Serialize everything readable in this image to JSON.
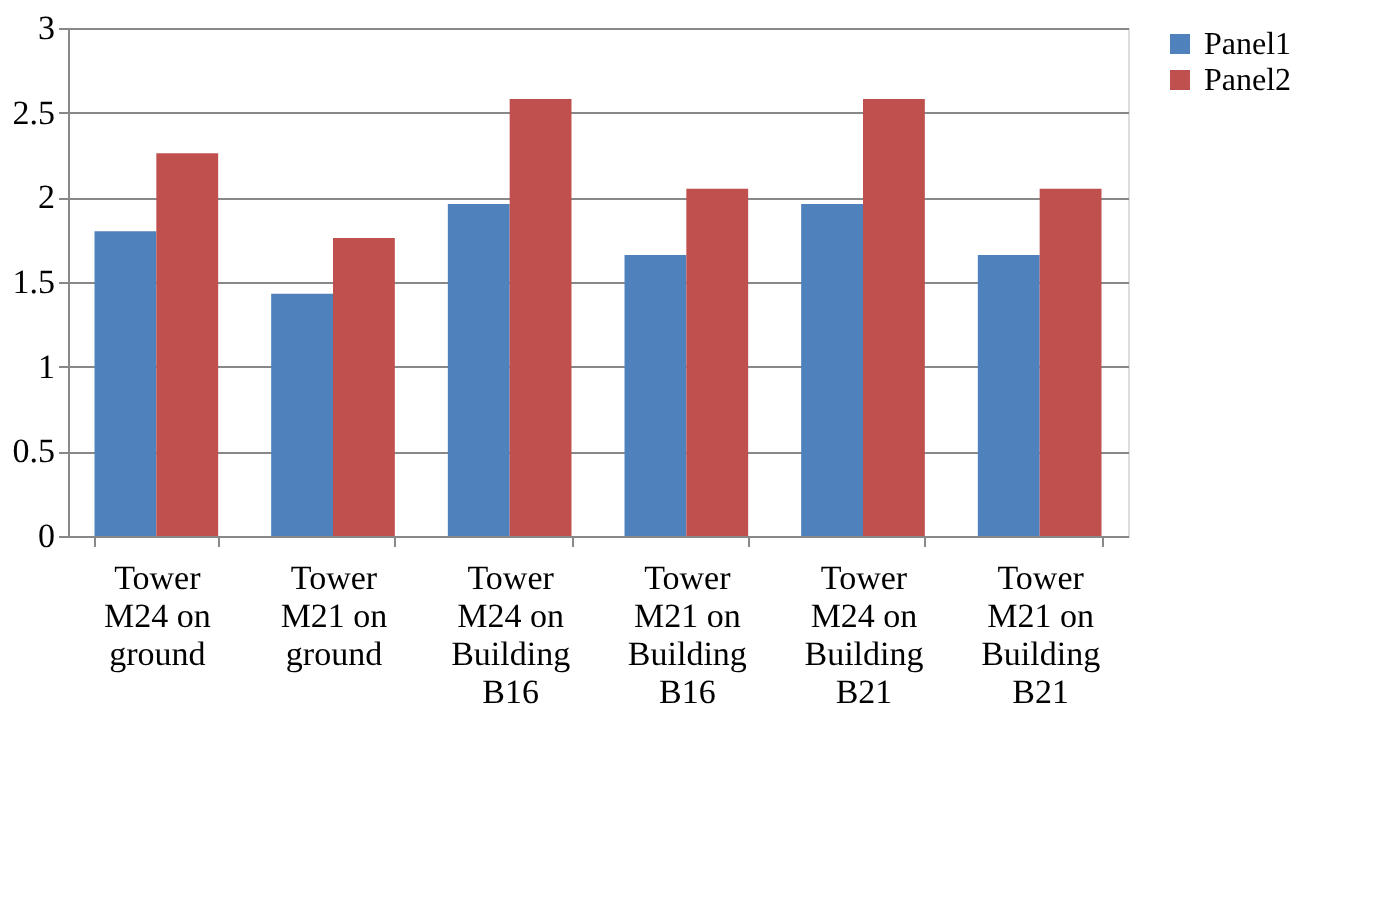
{
  "chart_data": {
    "type": "bar",
    "categories": [
      "Tower M24 on ground",
      "Tower M21 on ground",
      "Tower M24 on Building B16",
      "Tower M21 on Building B16",
      "Tower M24 on Building B21",
      "Tower M21 on Building B21"
    ],
    "series": [
      {
        "name": "Panel1",
        "color": "#4f81bd",
        "values": [
          1.8,
          1.43,
          1.96,
          1.66,
          1.96,
          1.66
        ]
      },
      {
        "name": "Panel2",
        "color": "#c0504d",
        "values": [
          2.26,
          1.76,
          2.58,
          2.05,
          2.58,
          2.05
        ]
      }
    ],
    "ylim": [
      0,
      3
    ],
    "yticks": [
      0,
      0.5,
      1,
      1.5,
      2,
      2.5,
      3
    ],
    "grid": "y",
    "legend": "right"
  }
}
